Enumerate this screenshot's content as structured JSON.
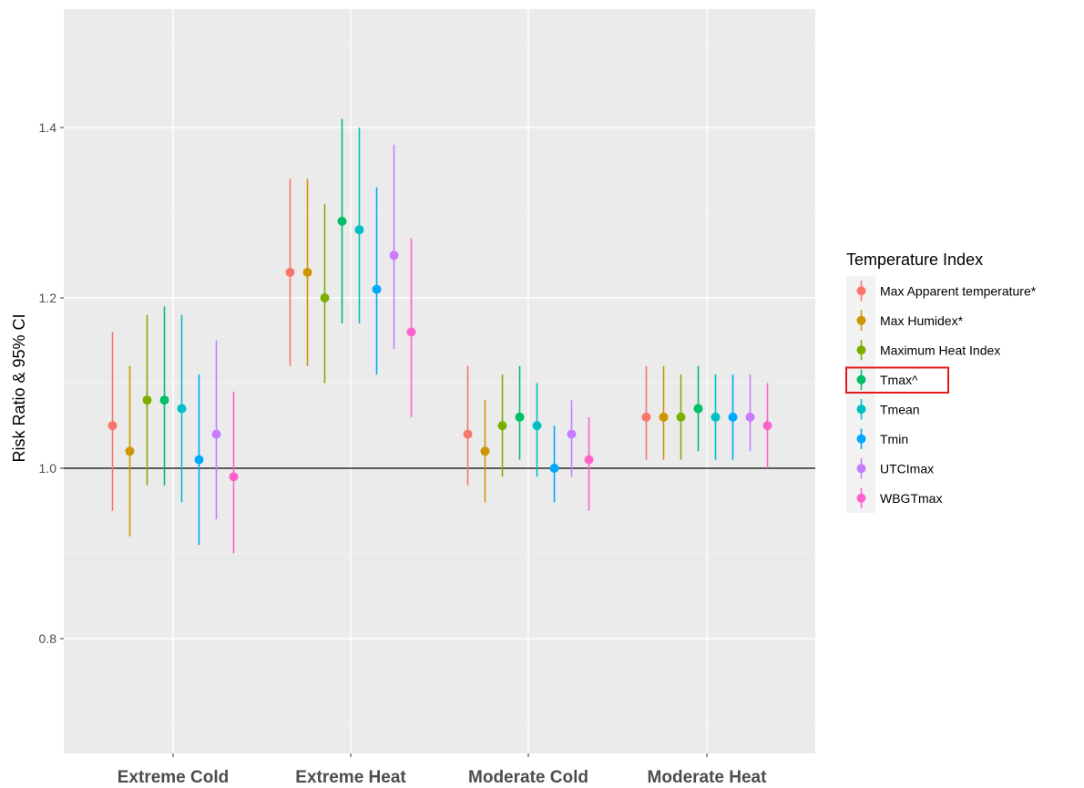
{
  "chart_data": {
    "type": "scatter",
    "subtype": "pointrange",
    "title": "",
    "xlabel": "",
    "ylabel": "Risk Ratio & 95% CI",
    "categories": [
      "Extreme Cold",
      "Extreme Heat",
      "Moderate Cold",
      "Moderate Heat"
    ],
    "ylim": [
      0.68,
      1.52
    ],
    "yticks": [
      "0.8",
      "1.0",
      "1.2",
      "1.4"
    ],
    "reference_line": 1.0,
    "grid": true,
    "legend": {
      "title": "Temperature Index",
      "position": "right",
      "highlighted": "Tmax^"
    },
    "series": [
      {
        "name": "Max Apparent temperature*",
        "color": "#F8766D",
        "values": [
          1.05,
          1.23,
          1.04,
          1.06
        ],
        "lower": [
          0.95,
          1.12,
          0.98,
          1.01
        ],
        "upper": [
          1.16,
          1.34,
          1.12,
          1.12
        ]
      },
      {
        "name": "Max Humidex*",
        "color": "#CD9600",
        "values": [
          1.02,
          1.23,
          1.02,
          1.06
        ],
        "lower": [
          0.92,
          1.12,
          0.96,
          1.01
        ],
        "upper": [
          1.12,
          1.34,
          1.08,
          1.12
        ]
      },
      {
        "name": "Maximum Heat Index",
        "color": "#7CAE00",
        "values": [
          1.08,
          1.2,
          1.05,
          1.06
        ],
        "lower": [
          0.98,
          1.1,
          0.99,
          1.01
        ],
        "upper": [
          1.18,
          1.31,
          1.11,
          1.11
        ]
      },
      {
        "name": "Tmax^",
        "color": "#00BE67",
        "values": [
          1.08,
          1.29,
          1.06,
          1.07
        ],
        "lower": [
          0.98,
          1.17,
          1.01,
          1.02
        ],
        "upper": [
          1.19,
          1.41,
          1.12,
          1.12
        ]
      },
      {
        "name": "Tmean",
        "color": "#00BFC4",
        "values": [
          1.07,
          1.28,
          1.05,
          1.06
        ],
        "lower": [
          0.96,
          1.17,
          0.99,
          1.01
        ],
        "upper": [
          1.18,
          1.4,
          1.1,
          1.11
        ]
      },
      {
        "name": "Tmin",
        "color": "#00A9FF",
        "values": [
          1.01,
          1.21,
          1.0,
          1.06
        ],
        "lower": [
          0.91,
          1.11,
          0.96,
          1.01
        ],
        "upper": [
          1.11,
          1.33,
          1.05,
          1.11
        ]
      },
      {
        "name": "UTCImax",
        "color": "#C77CFF",
        "values": [
          1.04,
          1.25,
          1.04,
          1.06
        ],
        "lower": [
          0.94,
          1.14,
          0.99,
          1.02
        ],
        "upper": [
          1.15,
          1.38,
          1.08,
          1.11
        ]
      },
      {
        "name": "WBGTmax",
        "color": "#FF61CC",
        "values": [
          0.99,
          1.16,
          1.01,
          1.05
        ],
        "lower": [
          0.9,
          1.06,
          0.95,
          1.0
        ],
        "upper": [
          1.09,
          1.27,
          1.06,
          1.1
        ]
      }
    ]
  }
}
